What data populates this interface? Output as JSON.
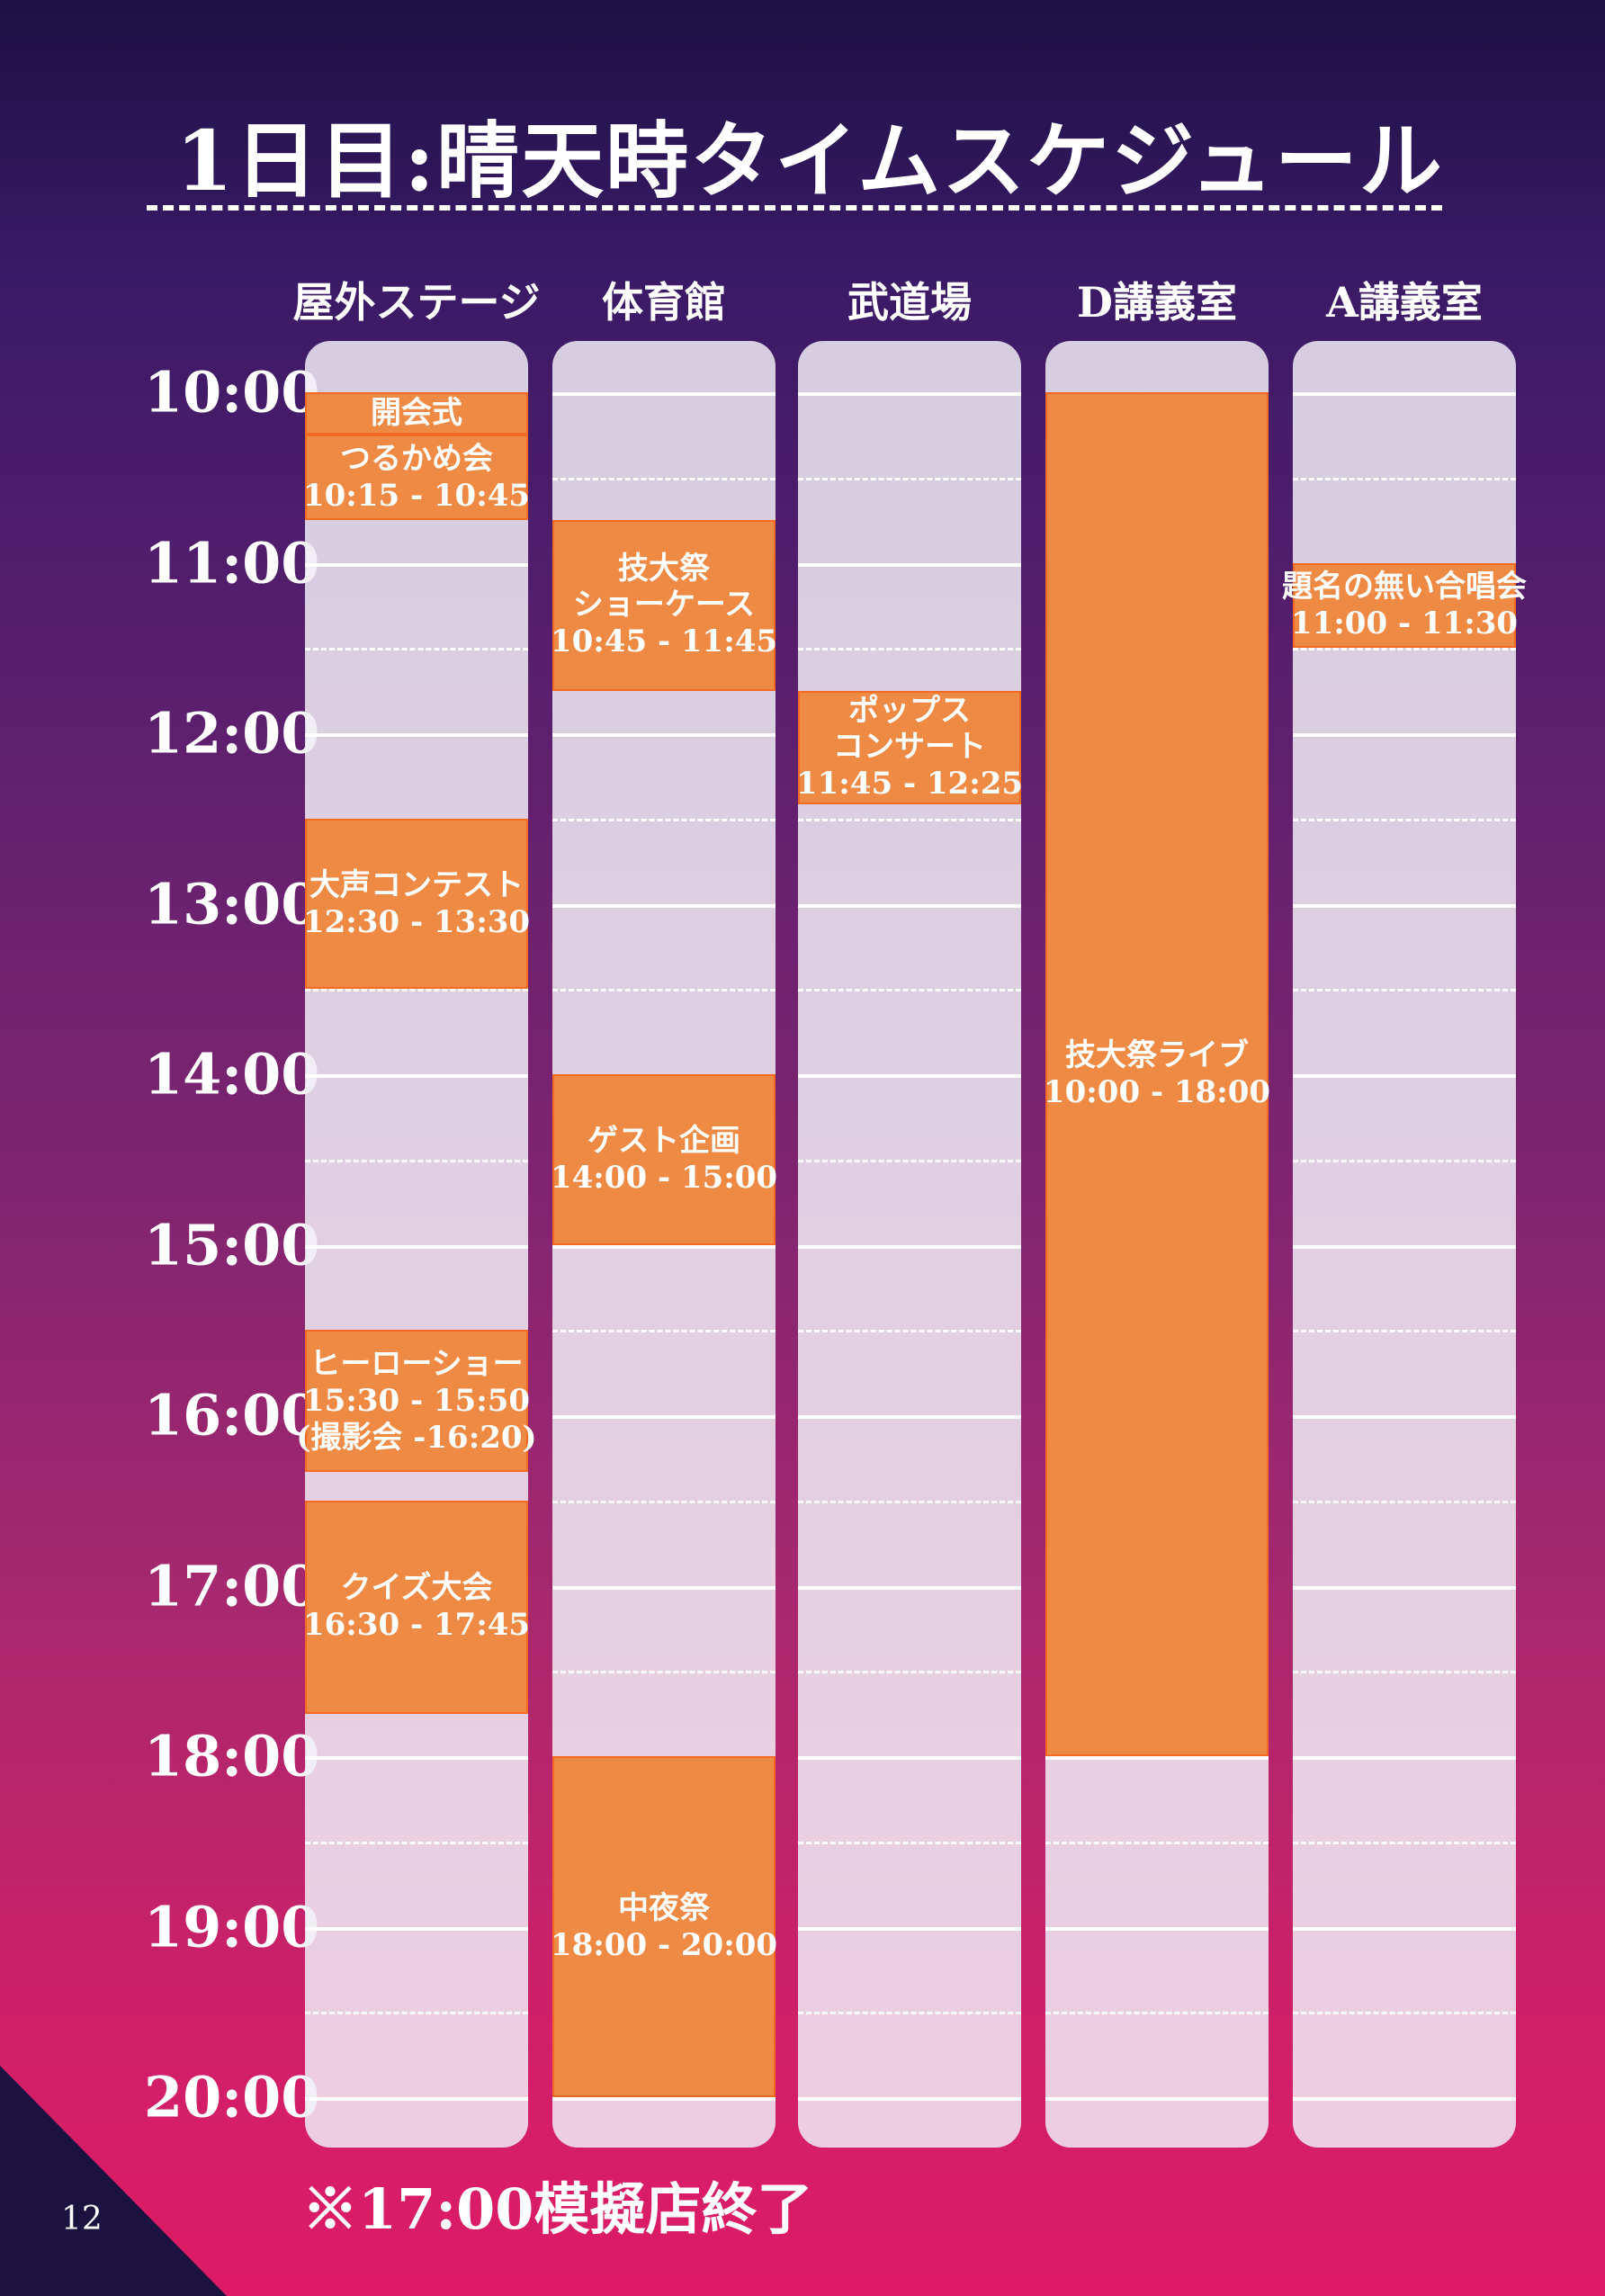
{
  "title": "1日目:晴天時タイムスケジュール",
  "columns": [
    {
      "name": "屋外ステージ",
      "events": [
        {
          "lines": [
            "開会式"
          ],
          "time": "",
          "start": "10:00",
          "end": "10:15"
        },
        {
          "lines": [
            "つるかめ会"
          ],
          "time": "10:15 - 10:45",
          "start": "10:15",
          "end": "10:45"
        },
        {
          "lines": [
            "大声コンテスト"
          ],
          "time": "12:30 - 13:30",
          "start": "12:30",
          "end": "13:30"
        },
        {
          "lines": [
            "ヒーローショー"
          ],
          "time": "15:30 - 15:50",
          "extra": "(撮影会 -16:20)",
          "start": "15:30",
          "end": "16:20"
        },
        {
          "lines": [
            "クイズ大会"
          ],
          "time": "16:30 - 17:45",
          "start": "16:30",
          "end": "17:45"
        }
      ]
    },
    {
      "name": "体育館",
      "events": [
        {
          "lines": [
            "技大祭",
            "ショーケース"
          ],
          "time": "10:45 - 11:45",
          "start": "10:45",
          "end": "11:45"
        },
        {
          "lines": [
            "ゲスト企画"
          ],
          "time": "14:00 - 15:00",
          "start": "14:00",
          "end": "15:00"
        },
        {
          "lines": [
            "中夜祭"
          ],
          "time": "18:00 - 20:00",
          "start": "18:00",
          "end": "20:00"
        }
      ]
    },
    {
      "name": "武道場",
      "events": [
        {
          "lines": [
            "ポップス",
            "コンサート"
          ],
          "time": "11:45 - 12:25",
          "start": "11:45",
          "end": "12:25"
        }
      ]
    },
    {
      "name": "D講義室",
      "events": [
        {
          "lines": [
            "技大祭ライブ"
          ],
          "time": "10:00 - 18:00",
          "start": "10:00",
          "end": "18:00"
        }
      ]
    },
    {
      "name": "A講義室",
      "events": [
        {
          "lines": [
            "題名の無い合唱会"
          ],
          "time": "11:00 - 11:30",
          "start": "11:00",
          "end": "11:30"
        }
      ]
    }
  ],
  "hours": [
    "10:00",
    "11:00",
    "12:00",
    "13:00",
    "14:00",
    "15:00",
    "16:00",
    "17:00",
    "18:00",
    "19:00",
    "20:00"
  ],
  "note": "※17:00模擬店終了",
  "page_number": "12",
  "colors": {
    "event": "#ef8a45",
    "event_border": "#f26a24"
  }
}
